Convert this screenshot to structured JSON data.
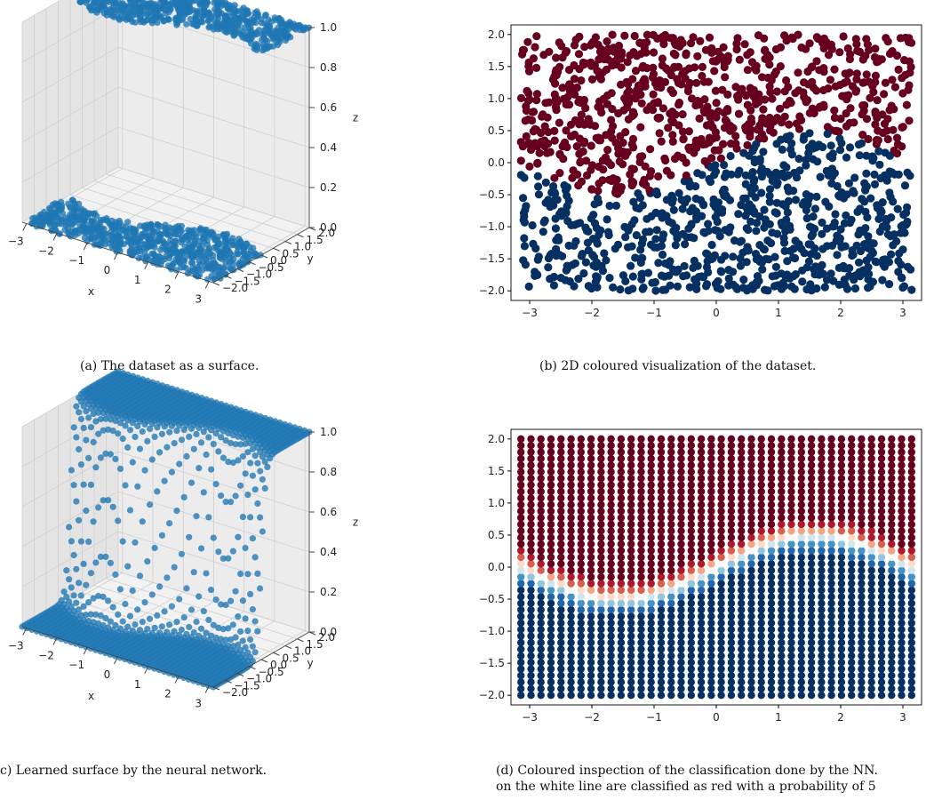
{
  "figure": {
    "captions": {
      "a": "(a) The dataset as a surface.",
      "b": "(b) 2D coloured visualization of the dataset.",
      "c": "c) Learned surface by the neural network.",
      "d1": "(d) Coloured inspection of the classification done by the NN.",
      "d2": "on the white line are classified as red with a probability of 5"
    }
  },
  "chart_data": [
    {
      "id": "a",
      "type": "scatter",
      "projection": "3d",
      "xlabel": "x",
      "ylabel": "y",
      "zlabel": "z",
      "xlim": [
        -3.14,
        3.14
      ],
      "ylim": [
        -2,
        2
      ],
      "zlim": [
        0,
        1
      ],
      "x_ticks": [
        "−3",
        "−2",
        "−1",
        "0",
        "1",
        "2",
        "3"
      ],
      "y_ticks": [
        "−2.0",
        "−1.5",
        "−1.0",
        "−0.5",
        "0.0",
        "0.5",
        "1.0",
        "1.5",
        "2.0"
      ],
      "z_ticks": [
        "0.0",
        "0.2",
        "0.4",
        "0.6",
        "0.8",
        "1.0"
      ],
      "n_points": 1500,
      "rule": "z = 1 if y > sin(x) * 0.5 else 0 (points sampled uniformly over x in [-3.14,3.14], y in [-2,2])",
      "colors": {
        "points": "#1f77b4"
      }
    },
    {
      "id": "b",
      "type": "scatter",
      "xlabel": "",
      "ylabel": "",
      "xlim": [
        -3.3,
        3.3
      ],
      "ylim": [
        -2.15,
        2.15
      ],
      "x_ticks": [
        {
          "v": -3,
          "t": "−3"
        },
        {
          "v": -2,
          "t": "−2"
        },
        {
          "v": -1,
          "t": "−1"
        },
        {
          "v": 0,
          "t": "0"
        },
        {
          "v": 1,
          "t": "1"
        },
        {
          "v": 2,
          "t": "2"
        },
        {
          "v": 3,
          "t": "3"
        }
      ],
      "y_ticks": [
        {
          "v": -2,
          "t": "−2.0"
        },
        {
          "v": -1.5,
          "t": "−1.5"
        },
        {
          "v": -1,
          "t": "−1.0"
        },
        {
          "v": -0.5,
          "t": "−0.5"
        },
        {
          "v": 0,
          "t": "0.0"
        },
        {
          "v": 0.5,
          "t": "0.5"
        },
        {
          "v": 1,
          "t": "1.0"
        },
        {
          "v": 1.5,
          "t": "1.5"
        },
        {
          "v": 2,
          "t": "2.0"
        }
      ],
      "n_points": 1500,
      "colors": {
        "class_1": "#67001f",
        "class_0": "#053061"
      }
    },
    {
      "id": "c",
      "type": "scatter",
      "projection": "3d",
      "xlabel": "x",
      "ylabel": "y",
      "zlabel": "z",
      "xlim": [
        -3.14,
        3.14
      ],
      "ylim": [
        -2,
        2
      ],
      "zlim": [
        0,
        1
      ],
      "x_ticks": [
        "−3",
        "−2",
        "−1",
        "0",
        "1",
        "2",
        "3"
      ],
      "y_ticks": [
        "−2.0",
        "−1.5",
        "−1.0",
        "−0.5",
        "0.0",
        "0.5",
        "1.0",
        "1.5",
        "2.0"
      ],
      "z_ticks": [
        "0.0",
        "0.2",
        "0.4",
        "0.6",
        "0.8",
        "1.0"
      ],
      "grid": [
        40,
        40
      ],
      "colors": {
        "points": "#1f77b4"
      }
    },
    {
      "id": "d",
      "type": "scatter",
      "xlabel": "",
      "ylabel": "",
      "xlim": [
        -3.3,
        3.3
      ],
      "ylim": [
        -2.15,
        2.15
      ],
      "x_ticks": [
        {
          "v": -3,
          "t": "−3"
        },
        {
          "v": -2,
          "t": "−2"
        },
        {
          "v": -1,
          "t": "−1"
        },
        {
          "v": 0,
          "t": "0"
        },
        {
          "v": 1,
          "t": "1"
        },
        {
          "v": 2,
          "t": "2"
        },
        {
          "v": 3,
          "t": "3"
        }
      ],
      "y_ticks": [
        {
          "v": -2,
          "t": "−2.0"
        },
        {
          "v": -1.5,
          "t": "−1.5"
        },
        {
          "v": -1,
          "t": "−1.0"
        },
        {
          "v": -0.5,
          "t": "−0.5"
        },
        {
          "v": 0,
          "t": "0.0"
        },
        {
          "v": 0.5,
          "t": "0.5"
        },
        {
          "v": 1,
          "t": "1.0"
        },
        {
          "v": 1.5,
          "t": "1.5"
        },
        {
          "v": 2,
          "t": "2.0"
        }
      ],
      "grid": [
        40,
        40
      ],
      "colormap": [
        "#053061",
        "#2166ac",
        "#4393c3",
        "#92c5de",
        "#d1e5f0",
        "#f7f7f7",
        "#fddbc7",
        "#f4a582",
        "#d6604d",
        "#b2182b",
        "#67001f"
      ]
    }
  ]
}
